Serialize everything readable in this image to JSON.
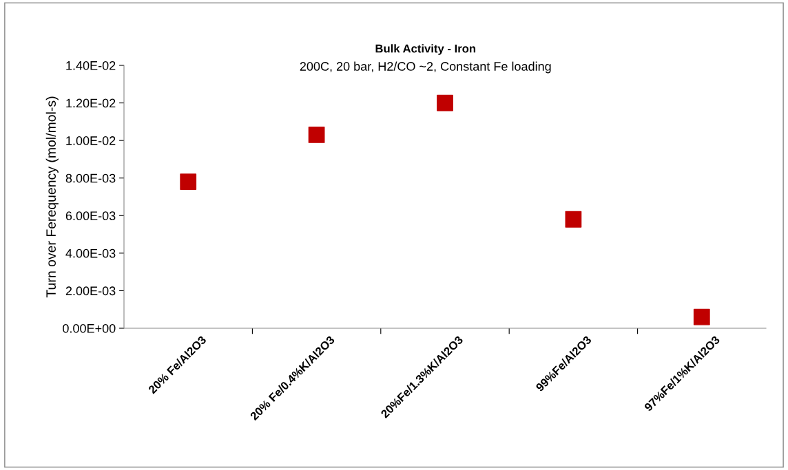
{
  "chart_data": {
    "type": "scatter",
    "title": "Bulk Activity - Iron",
    "subtitle": "200C, 20 bar, H2/CO ~2, Constant Fe loading",
    "ylabel": "Turn over Ferequency (mol/mol-s)",
    "categories": [
      "20% Fe/Al2O3",
      "20% Fe/0.4%K/Al2O3",
      "20%Fe/1.3%K/Al2O3",
      "99%Fe/Al2O3",
      "97%Fe/1%K/Al2O3"
    ],
    "series": [
      {
        "color": "#c00000",
        "values": [
          0.0078,
          0.0103,
          0.012,
          0.0058,
          0.0006
        ]
      }
    ],
    "marker": "square",
    "grid": false,
    "legend": false,
    "ylim": [
      0,
      0.014
    ],
    "yticks": [
      {
        "value": 0,
        "label": "0.00E+00"
      },
      {
        "value": 0.002,
        "label": "2.00E-03"
      },
      {
        "value": 0.004,
        "label": "4.00E-03"
      },
      {
        "value": 0.006,
        "label": "6.00E-03"
      },
      {
        "value": 0.008,
        "label": "8.00E-03"
      },
      {
        "value": 0.01,
        "label": "1.00E-02"
      },
      {
        "value": 0.012,
        "label": "1.20E-02"
      },
      {
        "value": 0.014,
        "label": "1.40E-02"
      }
    ]
  }
}
